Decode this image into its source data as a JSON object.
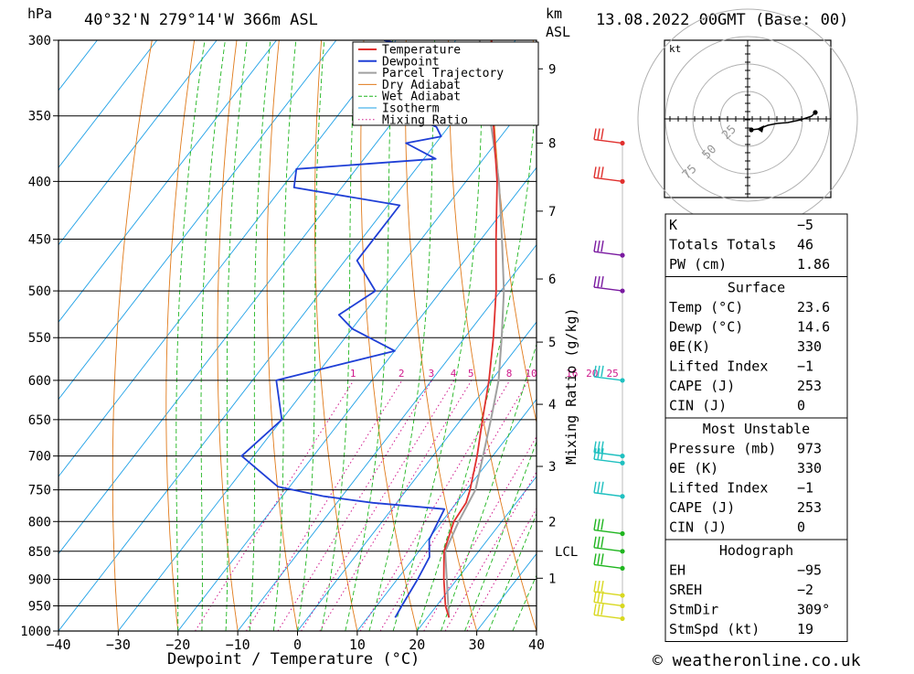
{
  "header": {
    "location": "40°32'N 279°14'W 366m ASL",
    "datetime": "13.08.2022 00GMT (Base: 00)",
    "pressure_unit": "hPa",
    "height_unit_km": "km",
    "height_unit_asl": "ASL"
  },
  "footer": {
    "credit": "© weatheronline.co.uk"
  },
  "colors": {
    "temperature": "#e0302e",
    "dewpoint": "#1f3fd6",
    "parcel": "#a0a0a0",
    "dry_adiabat": "#e07a1a",
    "wet_adiabat": "#1fb51f",
    "isotherm": "#1ea0e6",
    "mixing_ratio": "#d01a8c",
    "hodograph_line": "#000000"
  },
  "chart_data": {
    "type": "skew-T log-P",
    "xlabel": "Dewpoint / Temperature (°C)",
    "ylabel": "Mixing Ratio (g/kg)",
    "x_ticks": [
      "−40",
      "−30",
      "−20",
      "−10",
      "0",
      "10",
      "20",
      "30",
      "40"
    ],
    "pressure_levels": [
      300,
      350,
      400,
      450,
      500,
      550,
      600,
      650,
      700,
      750,
      800,
      850,
      900,
      950,
      1000
    ],
    "km_ticks": [
      {
        "label": "9",
        "p": 318
      },
      {
        "label": "8",
        "p": 370
      },
      {
        "label": "7",
        "p": 425
      },
      {
        "label": "6",
        "p": 488
      },
      {
        "label": "5",
        "p": 555
      },
      {
        "label": "4",
        "p": 630
      },
      {
        "label": "3",
        "p": 715
      },
      {
        "label": "2",
        "p": 800
      },
      {
        "label": "LCL",
        "p": 850
      },
      {
        "label": "1",
        "p": 898
      }
    ],
    "mixing_ratio_labels": [
      "1",
      "2",
      "3",
      "4",
      "5",
      "8",
      "10",
      "16",
      "20",
      "25"
    ],
    "mixing_ratio_values": [
      1,
      2,
      3,
      4,
      5,
      8,
      10,
      16,
      20,
      25
    ],
    "legend": [
      "Temperature",
      "Dewpoint",
      "Parcel Trajectory",
      "Dry Adiabat",
      "Wet Adiabat",
      "Isotherm",
      "Mixing Ratio"
    ],
    "legend_position": "top-right",
    "temperature_profile": [
      {
        "p": 973,
        "t": 23.6
      },
      {
        "p": 950,
        "t": 21.5
      },
      {
        "p": 900,
        "t": 17.8
      },
      {
        "p": 850,
        "t": 14.2
      },
      {
        "p": 800,
        "t": 12.0
      },
      {
        "p": 770,
        "t": 11.6
      },
      {
        "p": 750,
        "t": 10.6
      },
      {
        "p": 700,
        "t": 7.4
      },
      {
        "p": 650,
        "t": 3.6
      },
      {
        "p": 600,
        "t": -0.4
      },
      {
        "p": 550,
        "t": -5.2
      },
      {
        "p": 500,
        "t": -10.8
      },
      {
        "p": 450,
        "t": -17.5
      },
      {
        "p": 400,
        "t": -24.8
      },
      {
        "p": 350,
        "t": -34
      },
      {
        "p": 300,
        "t": -44
      }
    ],
    "dewpoint_profile": [
      {
        "p": 973,
        "t": 14.6
      },
      {
        "p": 950,
        "t": 14.2
      },
      {
        "p": 900,
        "t": 13.4
      },
      {
        "p": 860,
        "t": 12.5
      },
      {
        "p": 830,
        "t": 10.2
      },
      {
        "p": 780,
        "t": 8.8
      },
      {
        "p": 770,
        "t": -4
      },
      {
        "p": 760,
        "t": -13
      },
      {
        "p": 745,
        "t": -22
      },
      {
        "p": 700,
        "t": -32
      },
      {
        "p": 650,
        "t": -30
      },
      {
        "p": 600,
        "t": -36
      },
      {
        "p": 565,
        "t": -20
      },
      {
        "p": 540,
        "t": -30
      },
      {
        "p": 525,
        "t": -34
      },
      {
        "p": 500,
        "t": -31
      },
      {
        "p": 470,
        "t": -38
      },
      {
        "p": 440,
        "t": -38
      },
      {
        "p": 420,
        "t": -38
      },
      {
        "p": 405,
        "t": -58
      },
      {
        "p": 390,
        "t": -60
      },
      {
        "p": 382,
        "t": -38
      },
      {
        "p": 370,
        "t": -45
      },
      {
        "p": 365,
        "t": -40
      },
      {
        "p": 358,
        "t": -42
      },
      {
        "p": 350,
        "t": -48
      },
      {
        "p": 335,
        "t": -55
      },
      {
        "p": 320,
        "t": -50
      },
      {
        "p": 312,
        "t": -46
      },
      {
        "p": 300,
        "t": -62
      }
    ],
    "parcel_profile": [
      {
        "p": 973,
        "t": 23.6
      },
      {
        "p": 850,
        "t": 14.4
      },
      {
        "p": 800,
        "t": 12.8
      },
      {
        "p": 750,
        "t": 11.5
      },
      {
        "p": 700,
        "t": 8.4
      },
      {
        "p": 650,
        "t": 5.0
      },
      {
        "p": 600,
        "t": 1.2
      },
      {
        "p": 550,
        "t": -3.8
      },
      {
        "p": 500,
        "t": -9.5
      },
      {
        "p": 450,
        "t": -16.5
      },
      {
        "p": 400,
        "t": -24.5
      },
      {
        "p": 350,
        "t": -34.5
      },
      {
        "p": 300,
        "t": -46
      }
    ],
    "wind_barbs": [
      {
        "p": 370
      },
      {
        "p": 400
      },
      {
        "p": 465
      },
      {
        "p": 500
      },
      {
        "p": 600
      },
      {
        "p": 700
      },
      {
        "p": 710
      },
      {
        "p": 760
      },
      {
        "p": 820
      },
      {
        "p": 850
      },
      {
        "p": 880
      },
      {
        "p": 930
      },
      {
        "p": 950
      },
      {
        "p": 975
      }
    ],
    "hodograph": {
      "label": "kt",
      "ring_labels": [
        "25",
        "50",
        "75"
      ],
      "ring_values_kt": [
        25,
        50,
        75
      ]
    }
  },
  "indices": {
    "summary": [
      {
        "label": "K",
        "value": "−5"
      },
      {
        "label": "Totals Totals",
        "value": "46"
      },
      {
        "label": "PW (cm)",
        "value": "1.86"
      }
    ],
    "surface": {
      "title": "Surface",
      "rows": [
        {
          "label": "Temp (°C)",
          "value": "23.6"
        },
        {
          "label": "Dewp (°C)",
          "value": "14.6"
        },
        {
          "label": "θE(K)",
          "value": "330"
        },
        {
          "label": "Lifted Index",
          "value": "−1"
        },
        {
          "label": "CAPE (J)",
          "value": "253"
        },
        {
          "label": "CIN (J)",
          "value": "0"
        }
      ]
    },
    "most_unstable": {
      "title": "Most Unstable",
      "rows": [
        {
          "label": "Pressure (mb)",
          "value": "973"
        },
        {
          "label": "θE (K)",
          "value": "330"
        },
        {
          "label": "Lifted Index",
          "value": "−1"
        },
        {
          "label": "CAPE (J)",
          "value": "253"
        },
        {
          "label": "CIN (J)",
          "value": "0"
        }
      ]
    },
    "hodograph": {
      "title": "Hodograph",
      "rows": [
        {
          "label": "EH",
          "value": "−95"
        },
        {
          "label": "SREH",
          "value": "−2"
        },
        {
          "label": "StmDir",
          "value": "309°"
        },
        {
          "label": "StmSpd (kt)",
          "value": "19"
        }
      ]
    }
  }
}
